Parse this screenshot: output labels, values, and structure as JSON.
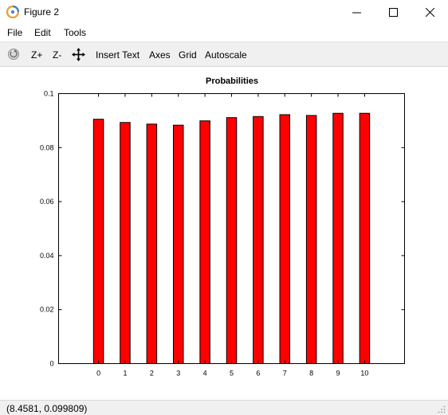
{
  "window": {
    "title": "Figure 2"
  },
  "menu": {
    "file": "File",
    "edit": "Edit",
    "tools": "Tools"
  },
  "toolbar": {
    "zoom_in": "Z+",
    "zoom_out": "Z-",
    "insert_text": "Insert Text",
    "axes": "Axes",
    "grid": "Grid",
    "autoscale": "Autoscale"
  },
  "status": {
    "coords": "(8.4581, 0.099809)"
  },
  "colors": {
    "bar_fill": "#ff0000",
    "bar_edge": "#000000"
  },
  "chart_data": {
    "type": "bar",
    "title": "Probabilities",
    "xlabel": "",
    "ylabel": "",
    "categories": [
      "0",
      "1",
      "2",
      "3",
      "4",
      "5",
      "6",
      "7",
      "8",
      "9",
      "10"
    ],
    "values": [
      0.0905,
      0.0893,
      0.0887,
      0.0883,
      0.0899,
      0.0911,
      0.0915,
      0.0922,
      0.0919,
      0.0927,
      0.0927
    ],
    "ylim": [
      0,
      0.1
    ],
    "xlim": [
      -1.5,
      11.5
    ],
    "yticks": [
      "0",
      "0.02",
      "0.04",
      "0.06",
      "0.08",
      "0.1"
    ],
    "ytick_values": [
      0,
      0.02,
      0.04,
      0.06,
      0.08,
      0.1
    ],
    "grid": false,
    "legend": "none"
  }
}
